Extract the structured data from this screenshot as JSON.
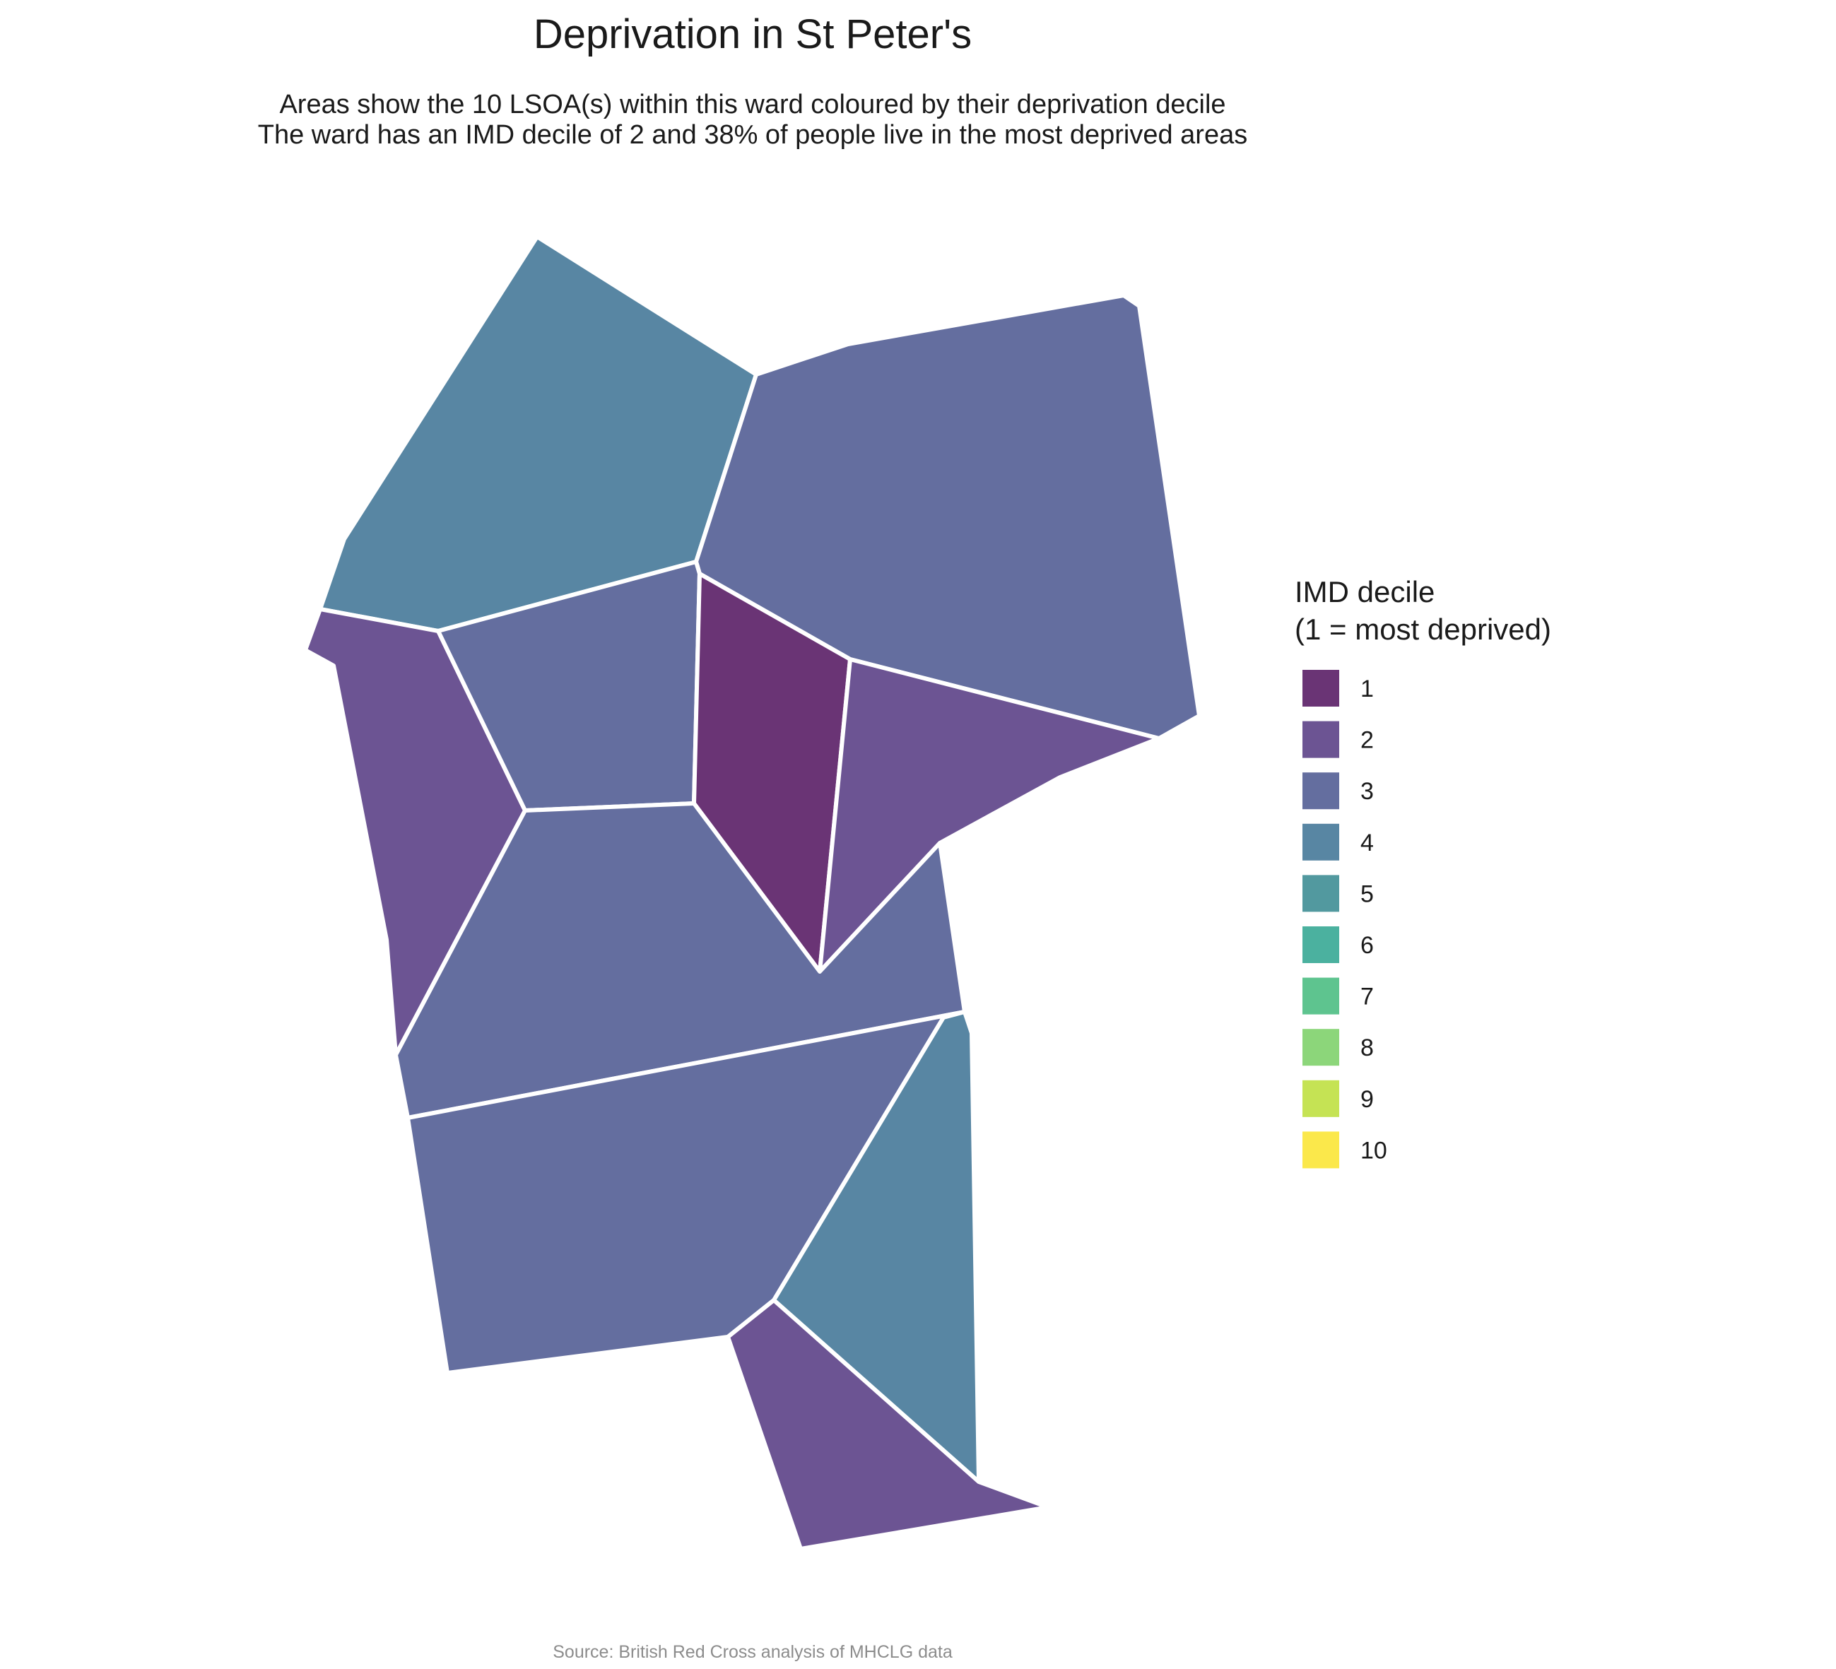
{
  "title": "Deprivation in St Peter's",
  "subtitle_line1": "Areas show the 10 LSOA(s) within this ward coloured by their deprivation decile",
  "subtitle_line2": "The ward has an IMD decile of 2 and 38% of people live in the most deprived areas",
  "legend": {
    "title_line1": "IMD decile",
    "title_line2": "(1 = most deprived)",
    "items": [
      {
        "label": "1",
        "color": "#6a3475"
      },
      {
        "label": "2",
        "color": "#6c5493"
      },
      {
        "label": "3",
        "color": "#646e9f"
      },
      {
        "label": "4",
        "color": "#5886a3"
      },
      {
        "label": "5",
        "color": "#52999f"
      },
      {
        "label": "6",
        "color": "#4bb19f"
      },
      {
        "label": "7",
        "color": "#5ec48f"
      },
      {
        "label": "8",
        "color": "#8cd67a"
      },
      {
        "label": "9",
        "color": "#c5e354"
      },
      {
        "label": "10",
        "color": "#fbe84b"
      }
    ]
  },
  "map": {
    "areas": [
      {
        "name": "north-west",
        "decile": 4
      },
      {
        "name": "north-east",
        "decile": 3
      },
      {
        "name": "west",
        "decile": 2
      },
      {
        "name": "central-north",
        "decile": 3
      },
      {
        "name": "central",
        "decile": 1
      },
      {
        "name": "east",
        "decile": 2
      },
      {
        "name": "central-south",
        "decile": 3
      },
      {
        "name": "south",
        "decile": 3
      },
      {
        "name": "south-east",
        "decile": 4
      },
      {
        "name": "far-south",
        "decile": 2
      }
    ]
  },
  "caption": "Source: British Red Cross analysis of MHCLG data"
}
